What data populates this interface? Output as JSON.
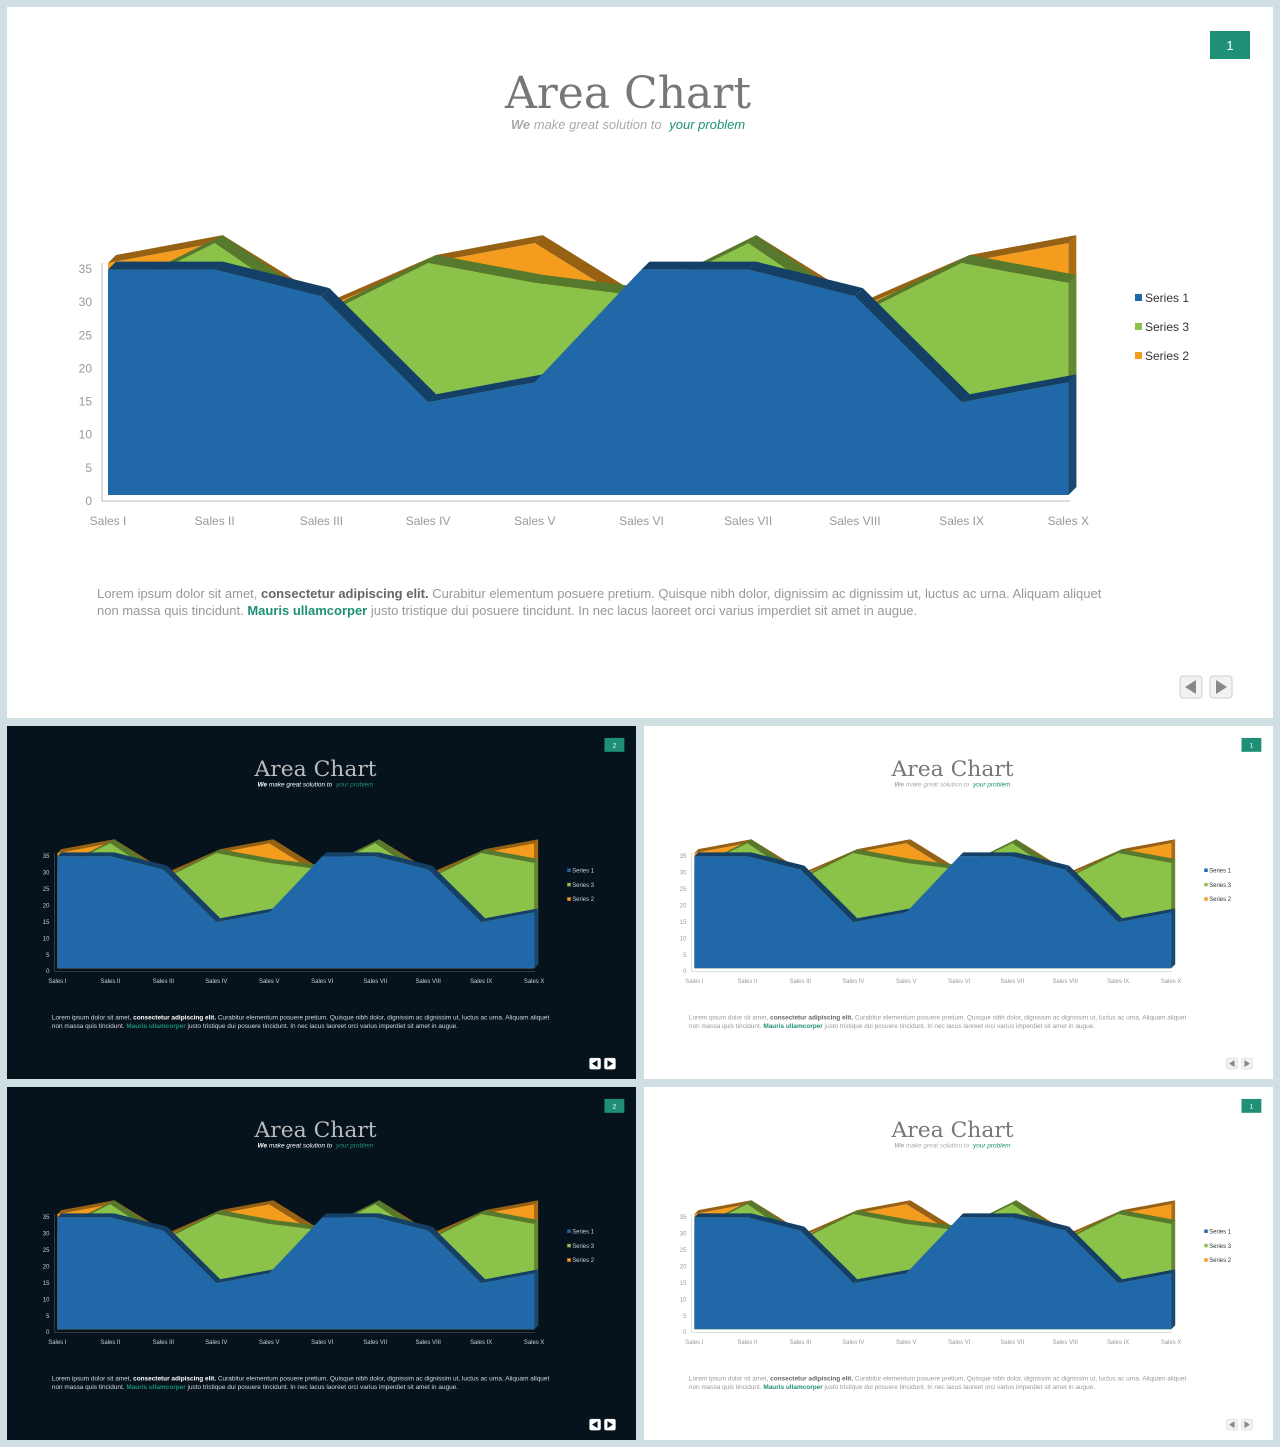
{
  "slides": [
    {
      "id": "slide-main",
      "theme": "light",
      "number": "1"
    },
    {
      "id": "slide-2",
      "theme": "dark",
      "number": "2"
    },
    {
      "id": "slide-3",
      "theme": "light",
      "number": "1"
    },
    {
      "id": "slide-4",
      "theme": "dark",
      "number": "2"
    },
    {
      "id": "slide-5",
      "theme": "light",
      "number": "1"
    }
  ],
  "title": "Area Chart",
  "subtitle": {
    "we": "We",
    "middle": " make great solution to ",
    "highlight": "your problem"
  },
  "body": {
    "part1": "Lorem ipsum dolor sit amet, ",
    "bold": "consectetur adipiscing elit.",
    "part2": " Curabitur elementum posuere pretium. Quisque nibh dolor, dignissim ac dignissim ut, luctus ac urna. Aliquam aliquet",
    "part3": "non massa quis tincidunt. ",
    "link": "Mauris ullamcorper",
    "part4": " justo tristique dui posuere tincidunt. In nec lacus laoreet orci varius imperdiet sit amet in augue."
  },
  "nav": {
    "prev_icon": "triangle-left-icon",
    "next_icon": "triangle-right-icon"
  },
  "colors": {
    "accent": "#1f9077",
    "series1": "#2168a8",
    "series3": "#8bc34a",
    "series2": "#f39c1e",
    "title_light": "#777777",
    "title_dark": "#bbbbbb"
  },
  "chart_data": {
    "type": "area",
    "categories": [
      "Sales I",
      "Sales II",
      "Sales III",
      "Sales IV",
      "Sales V",
      "Sales VI",
      "Sales VII",
      "Sales VIII",
      "Sales IX",
      "Sales X"
    ],
    "series": [
      {
        "name": "Series 2",
        "values": [
          35,
          38,
          28,
          35,
          38,
          28,
          38,
          28,
          35,
          38
        ]
      },
      {
        "name": "Series 3",
        "values": [
          30,
          38,
          27,
          35,
          32,
          30,
          38,
          27,
          35,
          32
        ]
      },
      {
        "name": "Series 1",
        "values": [
          34,
          34,
          30,
          14,
          17,
          34,
          34,
          30,
          14,
          17
        ]
      }
    ],
    "legend": [
      "Series 1",
      "Series 3",
      "Series 2"
    ],
    "legend_position": "right",
    "y_ticks": [
      "0",
      "5",
      "10",
      "15",
      "20",
      "25",
      "30",
      "35"
    ],
    "ylim": [
      0,
      35
    ]
  }
}
